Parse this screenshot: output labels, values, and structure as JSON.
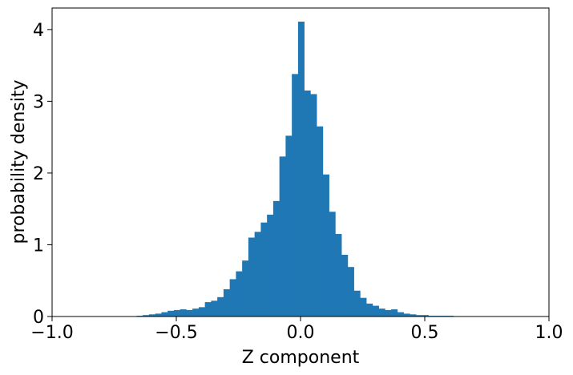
{
  "chart_data": {
    "type": "bar",
    "title": "",
    "xlabel": "Z component",
    "ylabel": "probability density",
    "xlim": [
      -1.0,
      1.0
    ],
    "ylim": [
      0,
      4.3
    ],
    "grid": false,
    "legend": "none",
    "bar_color": "#1f77b4",
    "x_ticks": [
      {
        "value": -1.0,
        "label": "−1.0"
      },
      {
        "value": -0.5,
        "label": "−0.5"
      },
      {
        "value": 0.0,
        "label": "0.0"
      },
      {
        "value": 0.5,
        "label": "0.5"
      },
      {
        "value": 1.0,
        "label": "1.0"
      }
    ],
    "y_ticks": [
      {
        "value": 0,
        "label": "0"
      },
      {
        "value": 1,
        "label": "1"
      },
      {
        "value": 2,
        "label": "2"
      },
      {
        "value": 3,
        "label": "3"
      },
      {
        "value": 4,
        "label": "4"
      }
    ],
    "bins": [
      {
        "x0": -0.66,
        "x1": -0.635,
        "y": 0.01
      },
      {
        "x0": -0.635,
        "x1": -0.61,
        "y": 0.02
      },
      {
        "x0": -0.61,
        "x1": -0.585,
        "y": 0.03
      },
      {
        "x0": -0.585,
        "x1": -0.56,
        "y": 0.04
      },
      {
        "x0": -0.56,
        "x1": -0.535,
        "y": 0.06
      },
      {
        "x0": -0.535,
        "x1": -0.51,
        "y": 0.08
      },
      {
        "x0": -0.51,
        "x1": -0.485,
        "y": 0.09
      },
      {
        "x0": -0.485,
        "x1": -0.46,
        "y": 0.1
      },
      {
        "x0": -0.46,
        "x1": -0.435,
        "y": 0.09
      },
      {
        "x0": -0.435,
        "x1": -0.41,
        "y": 0.11
      },
      {
        "x0": -0.41,
        "x1": -0.385,
        "y": 0.13
      },
      {
        "x0": -0.385,
        "x1": -0.36,
        "y": 0.2
      },
      {
        "x0": -0.36,
        "x1": -0.335,
        "y": 0.22
      },
      {
        "x0": -0.335,
        "x1": -0.31,
        "y": 0.27
      },
      {
        "x0": -0.31,
        "x1": -0.285,
        "y": 0.38
      },
      {
        "x0": -0.285,
        "x1": -0.26,
        "y": 0.52
      },
      {
        "x0": -0.26,
        "x1": -0.235,
        "y": 0.63
      },
      {
        "x0": -0.235,
        "x1": -0.21,
        "y": 0.78
      },
      {
        "x0": -0.21,
        "x1": -0.185,
        "y": 1.1
      },
      {
        "x0": -0.185,
        "x1": -0.16,
        "y": 1.18
      },
      {
        "x0": -0.16,
        "x1": -0.135,
        "y": 1.31
      },
      {
        "x0": -0.135,
        "x1": -0.11,
        "y": 1.42
      },
      {
        "x0": -0.11,
        "x1": -0.085,
        "y": 1.61
      },
      {
        "x0": -0.085,
        "x1": -0.06,
        "y": 2.23
      },
      {
        "x0": -0.06,
        "x1": -0.035,
        "y": 2.52
      },
      {
        "x0": -0.035,
        "x1": -0.01,
        "y": 3.38
      },
      {
        "x0": -0.01,
        "x1": 0.015,
        "y": 4.11
      },
      {
        "x0": 0.015,
        "x1": 0.04,
        "y": 3.15
      },
      {
        "x0": 0.04,
        "x1": 0.065,
        "y": 3.1
      },
      {
        "x0": 0.065,
        "x1": 0.09,
        "y": 2.65
      },
      {
        "x0": 0.09,
        "x1": 0.115,
        "y": 1.98
      },
      {
        "x0": 0.115,
        "x1": 0.14,
        "y": 1.46
      },
      {
        "x0": 0.14,
        "x1": 0.165,
        "y": 1.15
      },
      {
        "x0": 0.165,
        "x1": 0.19,
        "y": 0.86
      },
      {
        "x0": 0.19,
        "x1": 0.215,
        "y": 0.69
      },
      {
        "x0": 0.215,
        "x1": 0.24,
        "y": 0.36
      },
      {
        "x0": 0.24,
        "x1": 0.265,
        "y": 0.26
      },
      {
        "x0": 0.265,
        "x1": 0.29,
        "y": 0.18
      },
      {
        "x0": 0.29,
        "x1": 0.315,
        "y": 0.15
      },
      {
        "x0": 0.315,
        "x1": 0.34,
        "y": 0.11
      },
      {
        "x0": 0.34,
        "x1": 0.365,
        "y": 0.09
      },
      {
        "x0": 0.365,
        "x1": 0.39,
        "y": 0.1
      },
      {
        "x0": 0.39,
        "x1": 0.415,
        "y": 0.06
      },
      {
        "x0": 0.415,
        "x1": 0.44,
        "y": 0.04
      },
      {
        "x0": 0.44,
        "x1": 0.465,
        "y": 0.03
      },
      {
        "x0": 0.465,
        "x1": 0.49,
        "y": 0.02
      },
      {
        "x0": 0.49,
        "x1": 0.515,
        "y": 0.02
      },
      {
        "x0": 0.515,
        "x1": 0.54,
        "y": 0.01
      },
      {
        "x0": 0.54,
        "x1": 0.565,
        "y": 0.01
      },
      {
        "x0": 0.565,
        "x1": 0.59,
        "y": 0.01
      },
      {
        "x0": 0.59,
        "x1": 0.615,
        "y": 0.01
      },
      {
        "x0": 0.615,
        "x1": 0.64,
        "y": 0.005
      },
      {
        "x0": 0.64,
        "x1": 0.665,
        "y": 0.005
      },
      {
        "x0": 0.665,
        "x1": 0.69,
        "y": 0.005
      }
    ]
  }
}
